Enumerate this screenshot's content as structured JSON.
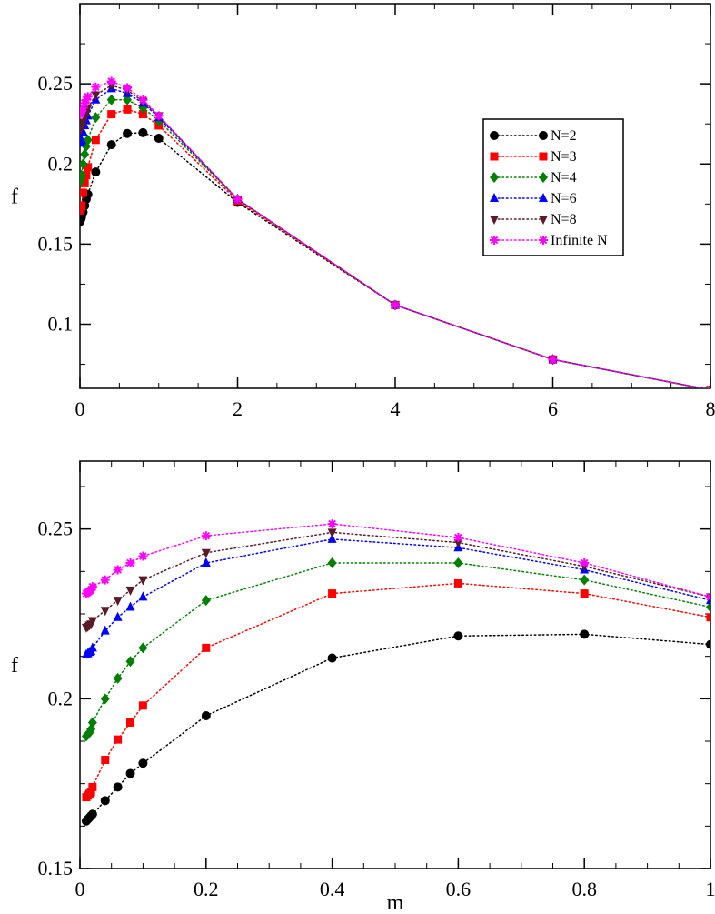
{
  "chart_data": [
    {
      "type": "line",
      "xlabel": "",
      "ylabel": "f",
      "xlim": [
        0,
        8
      ],
      "ylim": [
        0.06,
        0.3
      ],
      "xticks": [
        0,
        2,
        4,
        6,
        8
      ],
      "xtick_labels": [
        "0",
        "2",
        "4",
        "6",
        "8"
      ],
      "yticks": [
        0.1,
        0.15,
        0.2,
        0.25
      ],
      "ytick_labels": [
        "0.1",
        "0.15",
        "0.2",
        "0.25"
      ],
      "legend": {
        "position": "right",
        "entries": [
          "N=2",
          "N=3",
          "N=4",
          "N=6",
          "N=8",
          "Infinite N"
        ]
      },
      "series": [
        {
          "name": "N=2",
          "color": "#000000",
          "marker": "circle",
          "x": [
            0,
            0.005,
            0.01,
            0.015,
            0.02,
            0.04,
            0.06,
            0.08,
            0.1,
            0.2,
            0.4,
            0.6,
            0.8,
            1,
            2,
            4,
            6,
            8
          ],
          "y": [
            0.164,
            0.165,
            0.1655,
            0.166,
            0.167,
            0.17,
            0.174,
            0.178,
            0.181,
            0.195,
            0.212,
            0.219,
            0.2195,
            0.216,
            0.176,
            0.112,
            0.078,
            0.059
          ]
        },
        {
          "name": "N=3",
          "color": "#ff0000",
          "marker": "square",
          "x": [
            0,
            0.005,
            0.01,
            0.015,
            0.02,
            0.04,
            0.06,
            0.08,
            0.1,
            0.2,
            0.4,
            0.6,
            0.8,
            1,
            2,
            4,
            6,
            8
          ],
          "y": [
            0.171,
            0.172,
            0.1725,
            0.173,
            0.174,
            0.182,
            0.188,
            0.193,
            0.198,
            0.215,
            0.231,
            0.234,
            0.231,
            0.224,
            0.177,
            0.112,
            0.078,
            0.059
          ]
        },
        {
          "name": "N=4",
          "color": "#008000",
          "marker": "diamond",
          "x": [
            0,
            0.005,
            0.01,
            0.015,
            0.02,
            0.04,
            0.06,
            0.08,
            0.1,
            0.2,
            0.4,
            0.6,
            0.8,
            1,
            2,
            4,
            6,
            8
          ],
          "y": [
            0.189,
            0.19,
            0.191,
            0.192,
            0.193,
            0.2,
            0.206,
            0.211,
            0.215,
            0.229,
            0.24,
            0.24,
            0.235,
            0.227,
            0.178,
            0.112,
            0.078,
            0.059
          ]
        },
        {
          "name": "N=6",
          "color": "#0000ff",
          "marker": "triangle-up",
          "x": [
            0,
            0.005,
            0.01,
            0.015,
            0.02,
            0.04,
            0.06,
            0.08,
            0.1,
            0.2,
            0.4,
            0.6,
            0.8,
            1,
            2,
            4,
            6,
            8
          ],
          "y": [
            0.213,
            0.2135,
            0.214,
            0.2145,
            0.215,
            0.22,
            0.224,
            0.227,
            0.23,
            0.24,
            0.247,
            0.244,
            0.238,
            0.229,
            0.178,
            0.112,
            0.078,
            0.059
          ]
        },
        {
          "name": "N=8",
          "color": "#5a1a28",
          "marker": "triangle-down",
          "x": [
            0,
            0.005,
            0.01,
            0.015,
            0.02,
            0.04,
            0.06,
            0.08,
            0.1,
            0.2,
            0.4,
            0.6,
            0.8,
            1,
            2,
            4,
            6,
            8
          ],
          "y": [
            0.221,
            0.2215,
            0.222,
            0.2225,
            0.223,
            0.226,
            0.229,
            0.232,
            0.235,
            0.243,
            0.249,
            0.246,
            0.239,
            0.23,
            0.178,
            0.112,
            0.078,
            0.059
          ]
        },
        {
          "name": "Infinite N",
          "color": "#ff00ff",
          "marker": "asterisk",
          "x": [
            0,
            0.005,
            0.01,
            0.015,
            0.02,
            0.04,
            0.06,
            0.08,
            0.1,
            0.2,
            0.4,
            0.6,
            0.8,
            1,
            2,
            4,
            6,
            8
          ],
          "y": [
            0.231,
            0.2315,
            0.232,
            0.2325,
            0.233,
            0.235,
            0.238,
            0.24,
            0.242,
            0.248,
            0.2515,
            0.2475,
            0.24,
            0.23,
            0.178,
            0.112,
            0.078,
            0.059
          ]
        }
      ]
    },
    {
      "type": "line",
      "xlabel": "m",
      "ylabel": "f",
      "xlim": [
        0,
        1
      ],
      "ylim": [
        0.15,
        0.27
      ],
      "xticks": [
        0,
        0.2,
        0.4,
        0.6,
        0.8,
        1
      ],
      "xtick_labels": [
        "0",
        "0.2",
        "0.4",
        "0.6",
        "0.8",
        "1"
      ],
      "yticks": [
        0.15,
        0.2,
        0.25
      ],
      "ytick_labels": [
        "0.15",
        "0.2",
        "0.25"
      ],
      "series": [
        {
          "name": "N=2",
          "color": "#000000",
          "marker": "circle",
          "x": [
            0.01,
            0.0125,
            0.015,
            0.0175,
            0.02,
            0.04,
            0.06,
            0.08,
            0.1,
            0.2,
            0.4,
            0.6,
            0.8,
            1
          ],
          "y": [
            0.164,
            0.1645,
            0.165,
            0.1655,
            0.166,
            0.17,
            0.174,
            0.178,
            0.181,
            0.195,
            0.212,
            0.2185,
            0.219,
            0.216
          ]
        },
        {
          "name": "N=3",
          "color": "#ff0000",
          "marker": "square",
          "x": [
            0.01,
            0.0125,
            0.015,
            0.0175,
            0.02,
            0.04,
            0.06,
            0.08,
            0.1,
            0.2,
            0.4,
            0.6,
            0.8,
            1
          ],
          "y": [
            0.171,
            0.1715,
            0.172,
            0.1725,
            0.174,
            0.182,
            0.188,
            0.193,
            0.198,
            0.215,
            0.231,
            0.234,
            0.231,
            0.224
          ]
        },
        {
          "name": "N=4",
          "color": "#008000",
          "marker": "diamond",
          "x": [
            0.01,
            0.0125,
            0.015,
            0.0175,
            0.02,
            0.04,
            0.06,
            0.08,
            0.1,
            0.2,
            0.4,
            0.6,
            0.8,
            1
          ],
          "y": [
            0.189,
            0.1895,
            0.19,
            0.191,
            0.193,
            0.2,
            0.206,
            0.211,
            0.215,
            0.229,
            0.24,
            0.24,
            0.235,
            0.227
          ]
        },
        {
          "name": "N=6",
          "color": "#0000ff",
          "marker": "triangle-up",
          "x": [
            0.01,
            0.0125,
            0.015,
            0.0175,
            0.02,
            0.04,
            0.06,
            0.08,
            0.1,
            0.2,
            0.4,
            0.6,
            0.8,
            1
          ],
          "y": [
            0.213,
            0.2133,
            0.2137,
            0.214,
            0.215,
            0.22,
            0.224,
            0.227,
            0.23,
            0.24,
            0.247,
            0.2445,
            0.238,
            0.229
          ]
        },
        {
          "name": "N=8",
          "color": "#5a1a28",
          "marker": "triangle-down",
          "x": [
            0.01,
            0.0125,
            0.015,
            0.0175,
            0.02,
            0.04,
            0.06,
            0.08,
            0.1,
            0.2,
            0.4,
            0.6,
            0.8,
            1
          ],
          "y": [
            0.221,
            0.2213,
            0.2217,
            0.222,
            0.223,
            0.226,
            0.229,
            0.232,
            0.235,
            0.243,
            0.249,
            0.246,
            0.239,
            0.23
          ]
        },
        {
          "name": "Infinite N",
          "color": "#ff00ff",
          "marker": "asterisk",
          "x": [
            0.01,
            0.0125,
            0.015,
            0.0175,
            0.02,
            0.04,
            0.06,
            0.08,
            0.1,
            0.2,
            0.4,
            0.6,
            0.8,
            1
          ],
          "y": [
            0.231,
            0.2313,
            0.2317,
            0.232,
            0.233,
            0.235,
            0.238,
            0.24,
            0.242,
            0.248,
            0.2515,
            0.2475,
            0.24,
            0.23
          ]
        }
      ]
    }
  ]
}
